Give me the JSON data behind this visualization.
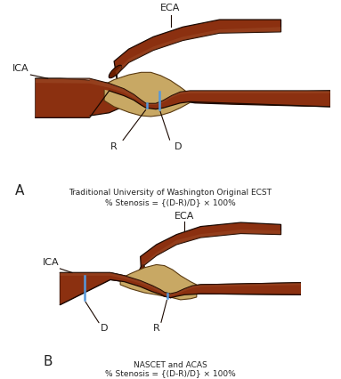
{
  "bg_color": "#ffffff",
  "artery_color_light": "#A0522D",
  "artery_color_mid": "#8B3010",
  "artery_color_dark": "#6B1E00",
  "artery_edge": "#1a0800",
  "plaque_color": "#C8A864",
  "plaque_edge": "#5a3a10",
  "blue_line": "#5599DD",
  "text_color": "#222222",
  "label_A": "A",
  "label_B": "B",
  "title_A1": "Traditional University of Washington Original ECST",
  "title_A2": "% Stenosis = {(D-R)/D} × 100%",
  "title_B1": "NASCET and ACAS",
  "title_B2": "% Stenosis = {(D-R)/D} × 100%",
  "label_ECA_A": "ECA",
  "label_ICA_A": "ICA",
  "label_R_A": "R",
  "label_D_A": "D",
  "label_ECA_B": "ECA",
  "label_ICA_B": "ICA",
  "label_D_B": "D",
  "label_R_B": "R"
}
